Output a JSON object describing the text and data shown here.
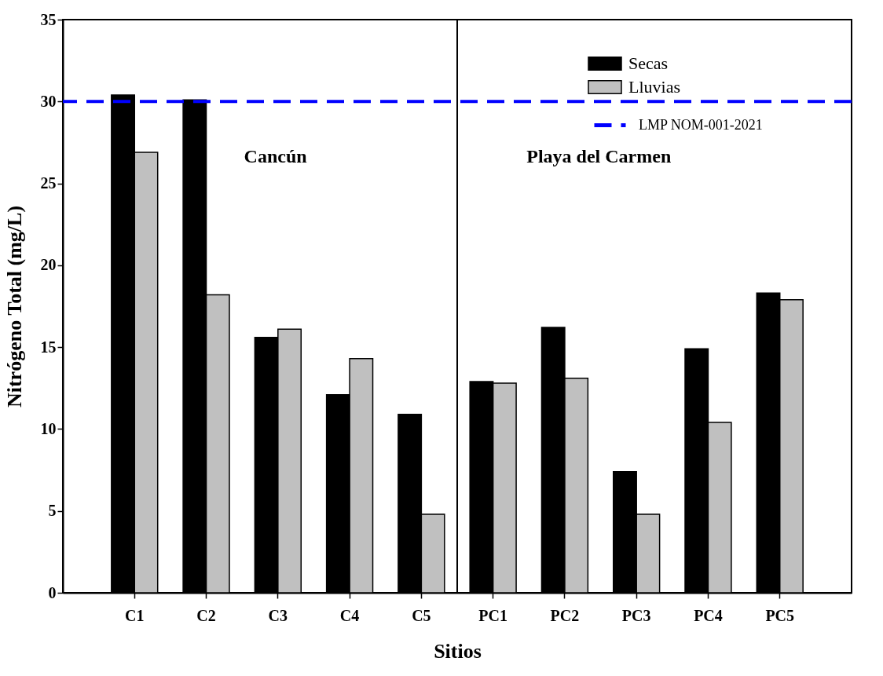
{
  "chart_data": {
    "type": "bar",
    "xlabel": "Sitios",
    "ylabel": "Nitrógeno Total (mg/L)",
    "categories": [
      "C1",
      "C2",
      "C3",
      "C4",
      "C5",
      "PC1",
      "PC2",
      "PC3",
      "PC4",
      "PC5"
    ],
    "series": [
      {
        "name": "Secas",
        "color": "#000000",
        "values": [
          30.4,
          30.1,
          15.6,
          12.1,
          10.9,
          12.9,
          16.2,
          7.4,
          14.9,
          18.3
        ]
      },
      {
        "name": "Lluvias",
        "color": "#c0c0c0",
        "values": [
          26.9,
          18.2,
          16.1,
          14.3,
          4.8,
          12.8,
          13.1,
          4.8,
          10.4,
          17.9
        ]
      }
    ],
    "ylim": [
      0,
      35
    ],
    "yticks": [
      0,
      5,
      10,
      15,
      20,
      25,
      30,
      35
    ],
    "ref_lines": [
      {
        "axis": "y",
        "value": 30,
        "label": "LMP NOM-001-2021",
        "color": "#0000ff",
        "line_style": "dashed"
      },
      {
        "axis": "x",
        "value": "PC1",
        "color": "#000000",
        "line_style": "solid"
      }
    ],
    "annotations": [
      "Cancún",
      "Playa del Carmen"
    ],
    "legend": "top right",
    "grid": false
  }
}
